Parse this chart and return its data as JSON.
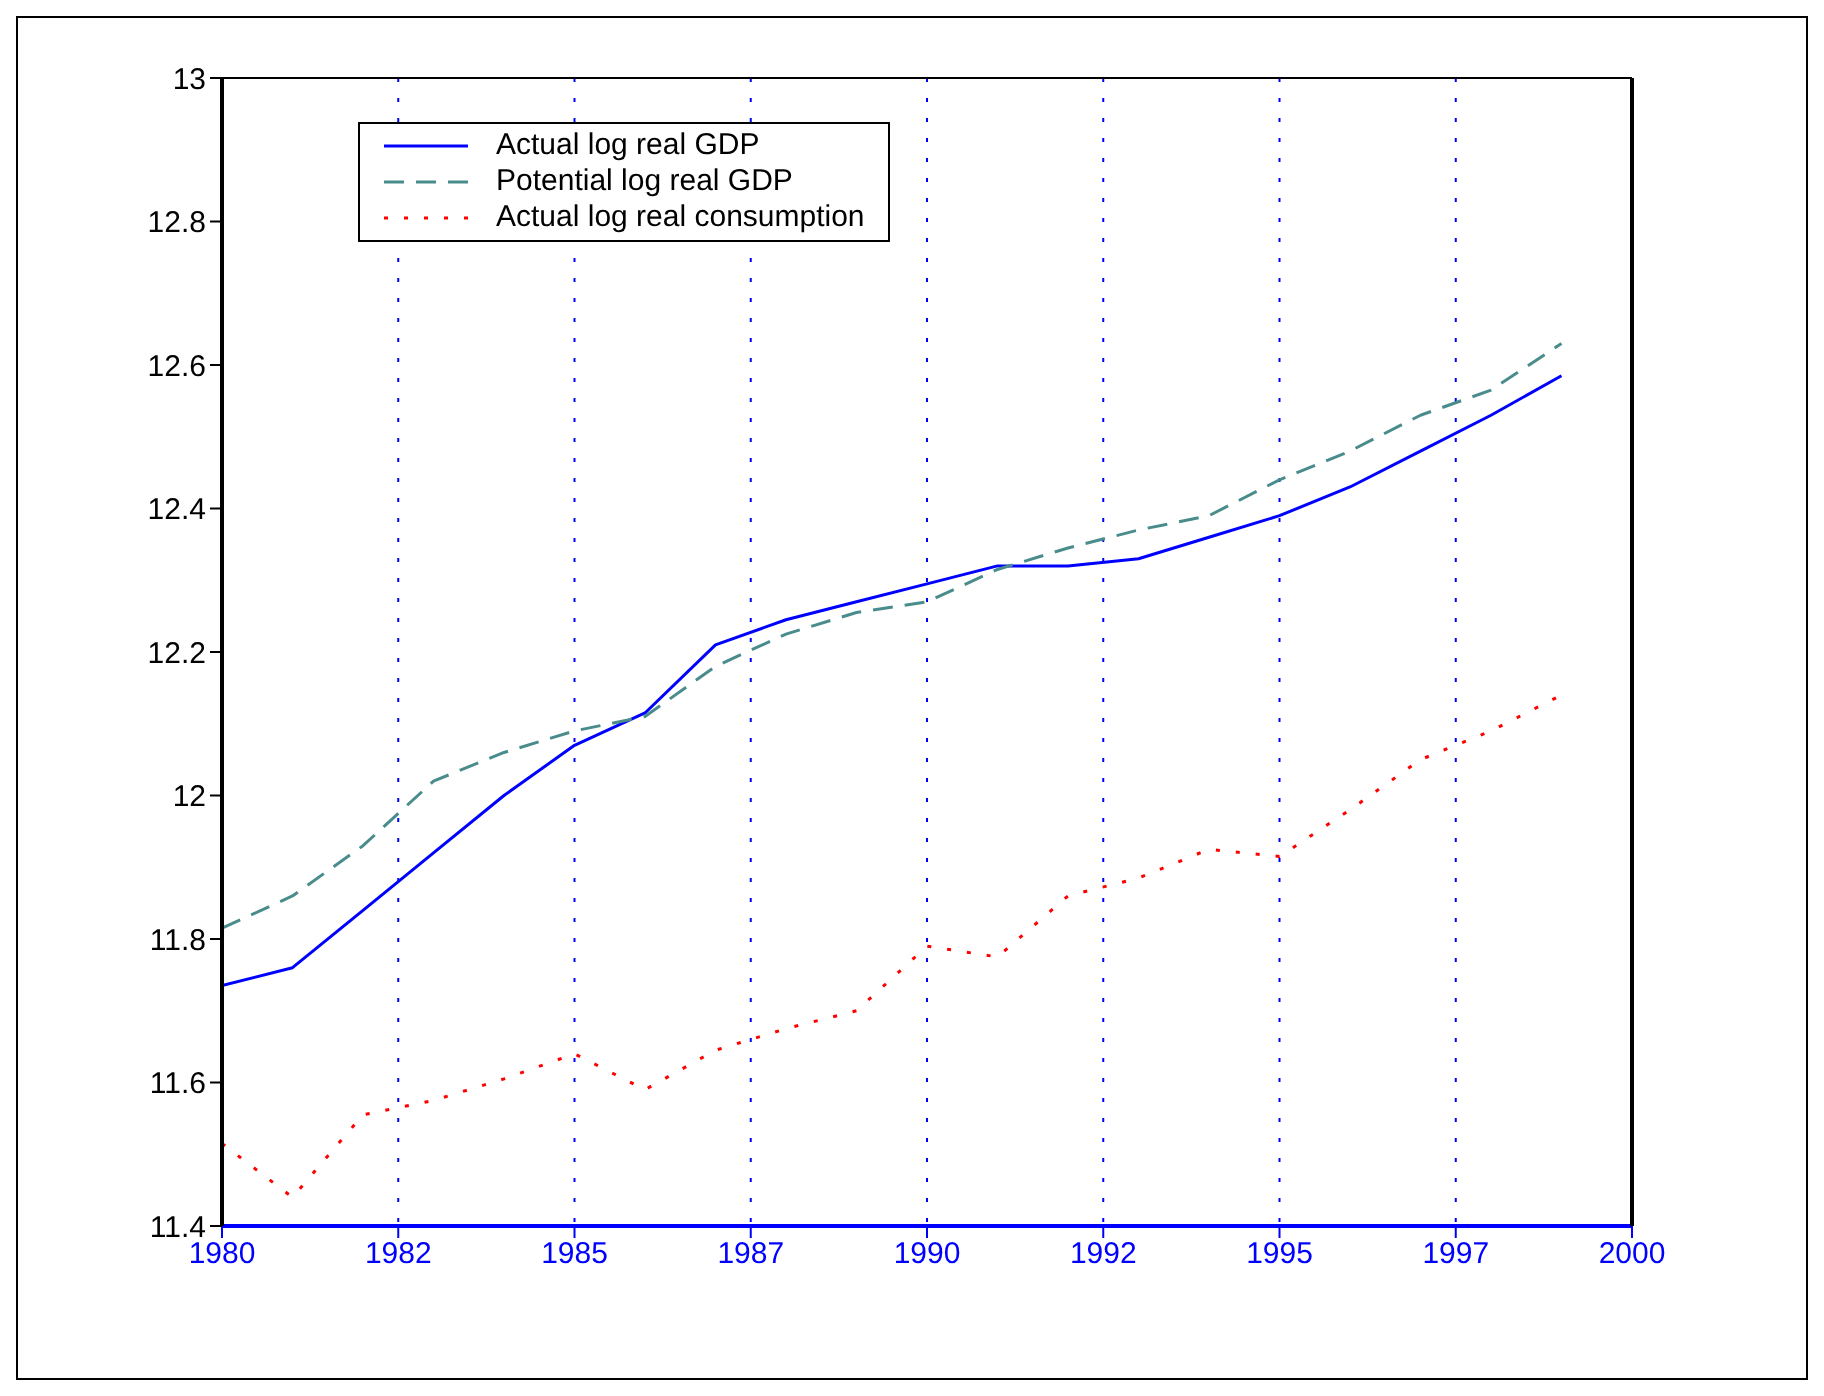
{
  "chart_data": {
    "type": "line",
    "x": [
      1980,
      1981,
      1982,
      1983,
      1984,
      1985,
      1986,
      1987,
      1988,
      1989,
      1990,
      1991,
      1992,
      1993,
      1994,
      1995,
      1996,
      1997,
      1998,
      1999
    ],
    "series": [
      {
        "name": "Actual log real GDP",
        "color": "#0000ff",
        "line_style": "solid",
        "values": [
          11.735,
          11.76,
          11.84,
          11.92,
          12.0,
          12.07,
          12.115,
          12.21,
          12.245,
          12.27,
          12.295,
          12.32,
          12.32,
          12.33,
          12.36,
          12.39,
          12.43,
          12.48,
          12.53,
          12.585
        ]
      },
      {
        "name": "Potential log real GDP",
        "color": "#4a8c8c",
        "line_style": "dashed",
        "values": [
          11.815,
          11.86,
          11.93,
          12.02,
          12.06,
          12.09,
          12.11,
          12.18,
          12.225,
          12.255,
          12.27,
          12.315,
          12.345,
          12.37,
          12.39,
          12.44,
          12.48,
          12.53,
          12.565,
          12.63
        ]
      },
      {
        "name": "Actual log real consumption",
        "color": "#ff0000",
        "line_style": "dotted",
        "values": [
          11.515,
          11.44,
          11.555,
          11.575,
          11.605,
          11.64,
          11.59,
          11.645,
          11.675,
          11.7,
          11.79,
          11.775,
          11.86,
          11.885,
          11.925,
          11.915,
          11.98,
          12.05,
          12.09,
          12.14
        ]
      }
    ],
    "xlim": [
      1980,
      2000
    ],
    "xticks": [
      1980,
      {
        "value": 1982.5,
        "label": "1982"
      },
      1985,
      {
        "value": 1987.5,
        "label": "1987"
      },
      1990,
      {
        "value": 1992.5,
        "label": "1992"
      },
      1995,
      {
        "value": 1997.5,
        "label": "1997"
      },
      2000
    ],
    "ylim": [
      11.4,
      13
    ],
    "yticks": [
      11.4,
      11.6,
      11.8,
      12,
      12.2,
      12.4,
      12.6,
      12.8,
      13
    ],
    "grid": "x",
    "legend": "top left",
    "marker": "none"
  }
}
